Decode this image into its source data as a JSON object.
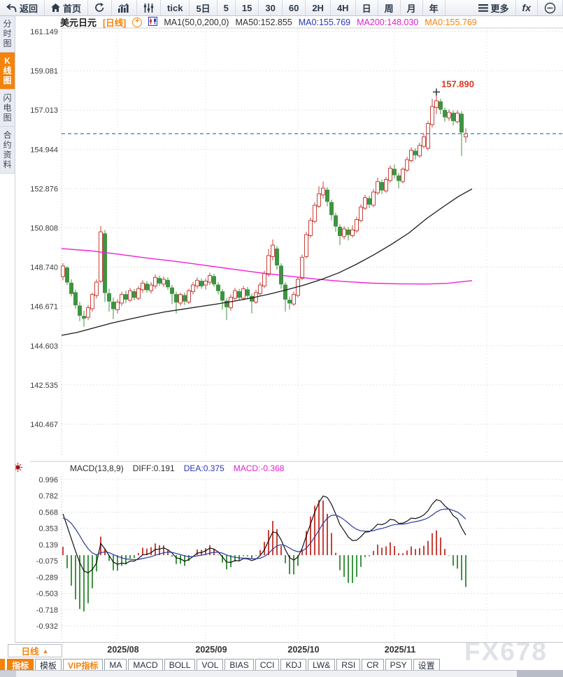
{
  "toolbar": {
    "items": [
      {
        "name": "back-button",
        "icon": "back-icon",
        "label": "返回"
      },
      {
        "name": "home-button",
        "icon": "home-icon",
        "label": "首页"
      },
      {
        "name": "refresh-button",
        "icon": "refresh-icon",
        "label": ""
      },
      {
        "name": "chart-type-button",
        "icon": "bar-chart-icon",
        "label": ""
      },
      {
        "name": "indicator-settings-button",
        "icon": "sliders-icon",
        "label": ""
      },
      {
        "name": "period-tick-button",
        "label": "tick"
      },
      {
        "name": "period-5d-button",
        "label": "5日"
      },
      {
        "name": "period-5m-button",
        "label": "5"
      },
      {
        "name": "period-15m-button",
        "label": "15"
      },
      {
        "name": "period-30m-button",
        "label": "30"
      },
      {
        "name": "period-60m-button",
        "label": "60"
      },
      {
        "name": "period-2h-button",
        "label": "2H"
      },
      {
        "name": "period-4h-button",
        "label": "4H"
      },
      {
        "name": "period-day-button",
        "label": "日"
      },
      {
        "name": "period-week-button",
        "label": "周"
      },
      {
        "name": "period-month-button",
        "label": "月"
      },
      {
        "name": "period-year-button",
        "label": "年"
      },
      {
        "name": "more-button",
        "icon": "menu-icon",
        "label": "更多"
      },
      {
        "name": "formula-button",
        "icon": "fx-icon",
        "label": "fx"
      },
      {
        "name": "zoom-out-button",
        "icon": "zoom-out-icon",
        "label": ""
      }
    ]
  },
  "sidebar": {
    "tabs": [
      {
        "label": "分时图",
        "active": false
      },
      {
        "label": "K线图",
        "active": true
      },
      {
        "label": "闪电图",
        "active": false
      },
      {
        "label": "合约资料",
        "active": false
      }
    ]
  },
  "chart_header": {
    "symbol": "美元日元",
    "period_tag": "[日线]",
    "ma_settings": "MA1(50,0,200,0)",
    "ma50": "MA50:152.855",
    "ma0_blue": "MA0:155.769",
    "ma200": "MA200:148.030",
    "ma0_orange": "MA0:155.769"
  },
  "macd_header": {
    "title": "MACD(13,8,9)",
    "diff": "DIFF:0.191",
    "dea": "DEA:0.375",
    "macd": "MACD:-0.368"
  },
  "x_axis": {
    "period_label": "日线"
  },
  "bottom_toolbar": {
    "tabs": [
      {
        "label": "指标",
        "state": "active"
      },
      {
        "label": "模板",
        "state": ""
      },
      {
        "label": "VIP指标",
        "state": "vip"
      },
      {
        "label": "MA",
        "state": ""
      },
      {
        "label": "MACD",
        "state": ""
      },
      {
        "label": "BOLL",
        "state": ""
      },
      {
        "label": "VOL",
        "state": ""
      },
      {
        "label": "BIAS",
        "state": ""
      },
      {
        "label": "CCI",
        "state": ""
      },
      {
        "label": "KDJ",
        "state": ""
      },
      {
        "label": "LW&",
        "state": ""
      },
      {
        "label": "RSI",
        "state": ""
      },
      {
        "label": "CR",
        "state": ""
      },
      {
        "label": "PSY",
        "state": ""
      },
      {
        "label": "设置",
        "state": ""
      }
    ]
  },
  "watermark": "FX678",
  "colors": {
    "accent_orange": "#f5820a",
    "up_red": "#c8413a",
    "down_green": "#3f9342",
    "ma50_black": "#1a1a1a",
    "ma200_magenta": "#ee1fd8",
    "diff_black": "#111111",
    "dea_blue": "#2b3a9e",
    "macd_text_magenta": "#dd22cc",
    "last_price_blue": "#3a87d8",
    "peak_label_red": "#d93a22",
    "grid_gray": "#dadada"
  },
  "chart_data": {
    "type": "candlestick+macd",
    "main": {
      "type": "candlestick",
      "title": "美元日元 日线 (USD/JPY daily)",
      "y_ticks": [
        "161.149",
        "159.081",
        "157.013",
        "154.944",
        "152.876",
        "150.808",
        "148.740",
        "146.671",
        "144.603",
        "142.535",
        "140.467"
      ],
      "x_ticks": [
        {
          "label": "2025/08",
          "index": 13
        },
        {
          "label": "2025/09",
          "index": 34
        },
        {
          "label": "2025/10",
          "index": 56
        },
        {
          "label": "2025/11",
          "index": 79
        }
      ],
      "extra_gridline_indices": [
        101
      ],
      "last_price": 155.769,
      "peak": {
        "index": 89,
        "price": 157.89,
        "label": "157.890"
      },
      "candles": [
        [
          148.25,
          148.95,
          148.05,
          148.8
        ],
        [
          148.7,
          148.8,
          147.8,
          147.95
        ],
        [
          147.9,
          148.1,
          147.2,
          147.35
        ],
        [
          147.4,
          147.55,
          146.55,
          146.75
        ],
        [
          146.7,
          146.9,
          145.9,
          146.2
        ],
        [
          146.15,
          146.45,
          145.6,
          146.05
        ],
        [
          146.1,
          146.75,
          145.95,
          146.6
        ],
        [
          146.55,
          147.4,
          146.4,
          147.3
        ],
        [
          147.25,
          148.1,
          147.1,
          147.95
        ],
        [
          148.0,
          150.9,
          147.9,
          150.6
        ],
        [
          150.5,
          150.7,
          146.9,
          147.4
        ],
        [
          147.35,
          147.6,
          146.4,
          146.95
        ],
        [
          146.9,
          147.15,
          146.0,
          146.55
        ],
        [
          146.5,
          147.05,
          146.3,
          146.9
        ],
        [
          146.85,
          147.45,
          146.7,
          147.3
        ],
        [
          147.3,
          147.5,
          146.85,
          147.05
        ],
        [
          147.0,
          147.65,
          146.9,
          147.5
        ],
        [
          147.45,
          147.6,
          147.0,
          147.15
        ],
        [
          147.1,
          147.75,
          147.0,
          147.6
        ],
        [
          147.55,
          148.05,
          147.4,
          147.9
        ],
        [
          147.85,
          148.0,
          147.4,
          147.55
        ],
        [
          147.5,
          147.95,
          147.35,
          147.8
        ],
        [
          147.75,
          148.35,
          147.6,
          148.2
        ],
        [
          148.15,
          148.3,
          147.75,
          147.9
        ],
        [
          147.85,
          148.25,
          147.7,
          148.1
        ],
        [
          148.05,
          148.2,
          147.55,
          147.7
        ],
        [
          147.65,
          147.8,
          146.8,
          147.35
        ],
        [
          147.3,
          147.45,
          146.3,
          146.9
        ],
        [
          146.85,
          147.4,
          146.7,
          147.3
        ],
        [
          147.25,
          147.4,
          146.75,
          146.95
        ],
        [
          146.9,
          147.6,
          146.8,
          147.5
        ],
        [
          147.45,
          147.95,
          147.3,
          147.8
        ],
        [
          147.75,
          148.2,
          147.6,
          148.05
        ],
        [
          148.0,
          148.15,
          147.6,
          147.75
        ],
        [
          147.8,
          148.15,
          147.55,
          148.0
        ],
        [
          147.95,
          148.45,
          147.8,
          148.3
        ],
        [
          148.25,
          148.4,
          147.7,
          147.85
        ],
        [
          147.8,
          147.95,
          147.3,
          147.5
        ],
        [
          147.45,
          147.6,
          146.5,
          147.0
        ],
        [
          146.95,
          147.1,
          145.95,
          146.65
        ],
        [
          146.6,
          147.3,
          146.45,
          147.15
        ],
        [
          147.1,
          147.65,
          147.0,
          147.5
        ],
        [
          147.45,
          147.6,
          147.0,
          147.15
        ],
        [
          147.1,
          147.75,
          147.0,
          147.6
        ],
        [
          147.55,
          147.7,
          147.1,
          147.25
        ],
        [
          147.2,
          147.35,
          146.3,
          146.95
        ],
        [
          146.9,
          147.55,
          146.8,
          147.4
        ],
        [
          147.35,
          147.95,
          147.25,
          147.8
        ],
        [
          147.75,
          148.55,
          147.65,
          148.4
        ],
        [
          148.35,
          149.7,
          148.25,
          149.35
        ],
        [
          149.3,
          150.2,
          149.1,
          149.9
        ],
        [
          149.7,
          149.85,
          148.6,
          148.85
        ],
        [
          148.8,
          148.95,
          147.6,
          147.85
        ],
        [
          147.8,
          147.95,
          146.4,
          147.05
        ],
        [
          147.0,
          147.2,
          146.5,
          146.85
        ],
        [
          146.8,
          147.45,
          146.7,
          147.3
        ],
        [
          147.25,
          148.25,
          147.15,
          148.1
        ],
        [
          148.15,
          149.4,
          148.05,
          149.25
        ],
        [
          149.3,
          150.6,
          149.2,
          150.45
        ],
        [
          150.4,
          151.35,
          150.3,
          151.2
        ],
        [
          151.15,
          152.15,
          151.05,
          152.0
        ],
        [
          151.95,
          153.0,
          151.85,
          152.6
        ],
        [
          152.55,
          153.25,
          152.35,
          152.9
        ],
        [
          152.8,
          152.95,
          151.95,
          152.2
        ],
        [
          152.15,
          152.3,
          151.2,
          151.5
        ],
        [
          151.45,
          151.6,
          150.6,
          150.9
        ],
        [
          150.85,
          151.0,
          149.9,
          150.4
        ],
        [
          150.35,
          150.9,
          150.2,
          150.75
        ],
        [
          150.7,
          150.85,
          150.15,
          150.45
        ],
        [
          150.4,
          150.95,
          150.3,
          150.7
        ],
        [
          150.65,
          151.4,
          150.55,
          151.25
        ],
        [
          151.2,
          152.05,
          151.1,
          151.9
        ],
        [
          151.85,
          152.55,
          151.75,
          152.4
        ],
        [
          152.35,
          152.5,
          151.85,
          152.05
        ],
        [
          152.0,
          152.85,
          151.9,
          152.7
        ],
        [
          152.65,
          153.45,
          152.55,
          153.25
        ],
        [
          153.2,
          153.35,
          152.6,
          152.8
        ],
        [
          152.75,
          153.5,
          152.65,
          153.35
        ],
        [
          153.3,
          154.1,
          153.2,
          153.95
        ],
        [
          153.9,
          154.15,
          153.4,
          153.6
        ],
        [
          153.55,
          153.7,
          152.9,
          153.3
        ],
        [
          153.25,
          154.0,
          153.15,
          153.9
        ],
        [
          153.85,
          154.55,
          153.75,
          154.4
        ],
        [
          154.35,
          155.05,
          154.25,
          154.9
        ],
        [
          154.85,
          155.0,
          154.4,
          154.65
        ],
        [
          154.6,
          155.3,
          154.5,
          155.15
        ],
        [
          155.1,
          155.75,
          155.0,
          155.6
        ],
        [
          155.0,
          156.45,
          154.9,
          156.3
        ],
        [
          156.25,
          157.6,
          156.1,
          157.2
        ],
        [
          157.15,
          157.89,
          156.8,
          157.5
        ],
        [
          157.45,
          157.6,
          156.8,
          157.05
        ],
        [
          157.0,
          157.15,
          156.4,
          156.65
        ],
        [
          156.6,
          157.05,
          156.45,
          156.9
        ],
        [
          156.85,
          157.0,
          156.2,
          156.45
        ],
        [
          156.4,
          157.0,
          156.3,
          156.85
        ],
        [
          156.8,
          156.95,
          154.6,
          155.85
        ],
        [
          155.6,
          156.05,
          155.3,
          155.77
        ]
      ],
      "ma50_points": [
        [
          88,
          145.15
        ],
        [
          110,
          145.3
        ],
        [
          135,
          145.55
        ],
        [
          160,
          145.8
        ],
        [
          185,
          146.0
        ],
        [
          210,
          146.2
        ],
        [
          235,
          146.38
        ],
        [
          260,
          146.52
        ],
        [
          285,
          146.66
        ],
        [
          310,
          146.8
        ],
        [
          335,
          146.95
        ],
        [
          360,
          147.12
        ],
        [
          385,
          147.32
        ],
        [
          410,
          147.55
        ],
        [
          435,
          147.8
        ],
        [
          460,
          148.1
        ],
        [
          485,
          148.45
        ],
        [
          510,
          148.9
        ],
        [
          535,
          149.4
        ],
        [
          560,
          149.95
        ],
        [
          585,
          150.55
        ],
        [
          610,
          151.3
        ],
        [
          635,
          151.95
        ],
        [
          655,
          152.45
        ],
        [
          675,
          152.86
        ]
      ],
      "ma200_points": [
        [
          88,
          149.72
        ],
        [
          130,
          149.6
        ],
        [
          170,
          149.42
        ],
        [
          210,
          149.22
        ],
        [
          250,
          149.05
        ],
        [
          290,
          148.85
        ],
        [
          330,
          148.65
        ],
        [
          370,
          148.45
        ],
        [
          410,
          148.28
        ],
        [
          450,
          148.12
        ],
        [
          490,
          147.99
        ],
        [
          530,
          147.9
        ],
        [
          570,
          147.86
        ],
        [
          610,
          147.85
        ],
        [
          640,
          147.89
        ],
        [
          675,
          148.03
        ]
      ]
    },
    "macd": {
      "type": "line+histogram",
      "title": "MACD(13,8,9)",
      "y_ticks": [
        "0.996",
        "0.782",
        "0.568",
        "0.353",
        "0.139",
        "-0.075",
        "-0.289",
        "-0.503",
        "-0.718",
        "-0.932"
      ],
      "params": [
        13,
        8,
        9
      ],
      "diff_last": 0.191,
      "dea_last": 0.375,
      "macd_last": -0.368,
      "note": "series derived from candle closes: DIFF=EMA8-EMA13, DEA=EMA9(DIFF), bar=2*(DIFF-DEA)"
    }
  }
}
